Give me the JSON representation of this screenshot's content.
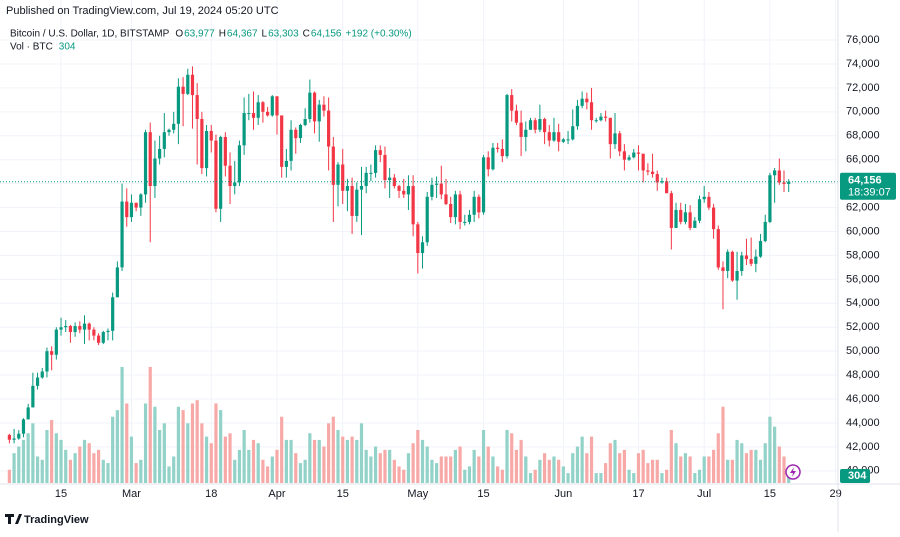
{
  "header": {
    "published": "Published on TradingView.com, Jul 19, 2024 05:20 UTC"
  },
  "footer": {
    "brand": "TradingView"
  },
  "chart_data": {
    "type": "candlestick",
    "symbol": "Bitcoin / U.S. Dollar, 1D, BITSTAMP",
    "legend": [
      {
        "key": "O",
        "value": "63,977"
      },
      {
        "key": "H",
        "value": "64,367"
      },
      {
        "key": "L",
        "value": "63,303"
      },
      {
        "key": "C",
        "value": "64,156"
      }
    ],
    "change": "+192 (+0.30%)",
    "volume_title": "Vol · BTC",
    "last_price_label": "64,156",
    "countdown": "18:39:07",
    "up_color": "#089981",
    "down_color": "#f23645",
    "up_volume_color": "#92d2c8",
    "down_volume_color": "#f7a9a7",
    "grid": true,
    "ylim": [
      38900,
      77340
    ],
    "yticks": [
      {
        "value": 40000,
        "label": "40,000"
      },
      {
        "value": 42000,
        "label": "42,000"
      },
      {
        "value": 44000,
        "label": "44,000"
      },
      {
        "value": 46000,
        "label": "46,000"
      },
      {
        "value": 48000,
        "label": "48,000"
      },
      {
        "value": 50000,
        "label": "50,000"
      },
      {
        "value": 52000,
        "label": "52,000"
      },
      {
        "value": 54000,
        "label": "54,000"
      },
      {
        "value": 56000,
        "label": "56,000"
      },
      {
        "value": 58000,
        "label": "58,000"
      },
      {
        "value": 60000,
        "label": "60,000"
      },
      {
        "value": 62000,
        "label": "62,000"
      },
      {
        "value": 64000,
        "label": "64,000"
      },
      {
        "value": 66000,
        "label": "66,000"
      },
      {
        "value": 68000,
        "label": "68,000"
      },
      {
        "value": 70000,
        "label": "70,000"
      },
      {
        "value": 72000,
        "label": "72,000"
      },
      {
        "value": 74000,
        "label": "74,000"
      },
      {
        "value": 76000,
        "label": "76,000"
      }
    ],
    "xlim": [
      -2,
      176.5
    ],
    "xticks": [
      {
        "value": 11,
        "label": "15"
      },
      {
        "value": 26,
        "label": "Mar"
      },
      {
        "value": 43,
        "label": "18"
      },
      {
        "value": 57,
        "label": "Apr"
      },
      {
        "value": 71,
        "label": "15"
      },
      {
        "value": 87,
        "label": "May"
      },
      {
        "value": 101,
        "label": "15"
      },
      {
        "value": 118,
        "label": "Jun"
      },
      {
        "value": 134,
        "label": "17"
      },
      {
        "value": 148,
        "label": "Jul"
      },
      {
        "value": 162,
        "label": "15"
      },
      {
        "value": 176,
        "label": "29"
      }
    ],
    "candles": [
      [
        43000,
        43100,
        42300,
        42600
      ],
      [
        42600,
        43500,
        42300,
        42700
      ],
      [
        42700,
        43400,
        42600,
        43100
      ],
      [
        43100,
        44400,
        42800,
        44300
      ],
      [
        44300,
        45600,
        44300,
        45300
      ],
      [
        45300,
        48200,
        45300,
        47100
      ],
      [
        47100,
        48200,
        46800,
        47800
      ],
      [
        47800,
        48600,
        47700,
        48300
      ],
      [
        48300,
        50300,
        47800,
        50000
      ],
      [
        50000,
        50400,
        48400,
        49700
      ],
      [
        49700,
        52000,
        49300,
        51800
      ],
      [
        51800,
        52800,
        51300,
        52000
      ],
      [
        52000,
        52600,
        51600,
        52100
      ],
      [
        52100,
        52200,
        50700,
        51600
      ],
      [
        51600,
        52400,
        51200,
        52100
      ],
      [
        52100,
        52500,
        51500,
        51800
      ],
      [
        51800,
        53000,
        50600,
        52300
      ],
      [
        52300,
        52400,
        50900,
        51800
      ],
      [
        51800,
        52000,
        50900,
        51300
      ],
      [
        51300,
        51500,
        50500,
        50700
      ],
      [
        50700,
        51700,
        50600,
        51600
      ],
      [
        51600,
        51900,
        50900,
        51700
      ],
      [
        51700,
        54900,
        50900,
        54500
      ],
      [
        54500,
        57500,
        54500,
        57000
      ],
      [
        57000,
        64000,
        56700,
        62500
      ],
      [
        62500,
        63600,
        60400,
        61200
      ],
      [
        61200,
        63100,
        60800,
        62400
      ],
      [
        62400,
        62400,
        61700,
        62000
      ],
      [
        62000,
        63200,
        61300,
        63100
      ],
      [
        63100,
        68500,
        62400,
        68300
      ],
      [
        68300,
        69100,
        59100,
        63800
      ],
      [
        63800,
        67600,
        62800,
        66100
      ],
      [
        66100,
        68000,
        65600,
        66900
      ],
      [
        66900,
        69900,
        66200,
        68300
      ],
      [
        68300,
        68600,
        68000,
        68500
      ],
      [
        68500,
        70000,
        68200,
        69000
      ],
      [
        69000,
        72800,
        67300,
        72100
      ],
      [
        72100,
        72900,
        68800,
        71500
      ],
      [
        71500,
        73600,
        71400,
        73100
      ],
      [
        73100,
        73800,
        68600,
        71400
      ],
      [
        71400,
        72400,
        65600,
        69400
      ],
      [
        69400,
        70000,
        64800,
        65300
      ],
      [
        65300,
        68900,
        64600,
        68400
      ],
      [
        68400,
        68900,
        66600,
        67600
      ],
      [
        67600,
        68100,
        61600,
        61900
      ],
      [
        61900,
        68000,
        60800,
        67900
      ],
      [
        67900,
        68300,
        64600,
        65500
      ],
      [
        65500,
        66600,
        62300,
        63800
      ],
      [
        63800,
        65900,
        63100,
        64100
      ],
      [
        64100,
        67600,
        63800,
        67200
      ],
      [
        67200,
        71200,
        66400,
        69900
      ],
      [
        69900,
        71500,
        69300,
        69900
      ],
      [
        69900,
        71700,
        68500,
        69500
      ],
      [
        69500,
        71400,
        68900,
        70800
      ],
      [
        70800,
        70900,
        69100,
        70000
      ],
      [
        70000,
        70400,
        69600,
        69700
      ],
      [
        69700,
        71400,
        69600,
        71300
      ],
      [
        71300,
        71300,
        68100,
        69700
      ],
      [
        69700,
        69700,
        64500,
        65400
      ],
      [
        65400,
        66900,
        64500,
        65900
      ],
      [
        65900,
        69300,
        65100,
        68500
      ],
      [
        68500,
        68700,
        66500,
        67800
      ],
      [
        67800,
        69000,
        67400,
        68900
      ],
      [
        68900,
        70300,
        68800,
        69400
      ],
      [
        69400,
        72700,
        69100,
        71600
      ],
      [
        71600,
        71700,
        68200,
        69200
      ],
      [
        69200,
        71000,
        67500,
        70600
      ],
      [
        70600,
        71300,
        69600,
        70100
      ],
      [
        70100,
        71200,
        65100,
        67100
      ],
      [
        67100,
        67900,
        60800,
        63900
      ],
      [
        63900,
        65800,
        62100,
        65600
      ],
      [
        65600,
        66900,
        62300,
        63400
      ],
      [
        63400,
        64400,
        61700,
        63800
      ],
      [
        63800,
        64500,
        59800,
        61300
      ],
      [
        61300,
        64100,
        60800,
        63500
      ],
      [
        63500,
        65400,
        59700,
        63800
      ],
      [
        63800,
        65400,
        63200,
        64900
      ],
      [
        64900,
        65600,
        64200,
        64900
      ],
      [
        64900,
        67200,
        64500,
        66800
      ],
      [
        66800,
        67200,
        65800,
        66400
      ],
      [
        66400,
        67100,
        63600,
        64300
      ],
      [
        64300,
        65300,
        62800,
        64500
      ],
      [
        64500,
        64800,
        63600,
        63800
      ],
      [
        63800,
        63900,
        62800,
        63400
      ],
      [
        63400,
        64400,
        62800,
        63100
      ],
      [
        63100,
        64700,
        61800,
        63800
      ],
      [
        63800,
        64700,
        59600,
        60600
      ],
      [
        60600,
        60800,
        56500,
        58200
      ],
      [
        58200,
        59600,
        56900,
        59100
      ],
      [
        59100,
        63300,
        58800,
        62900
      ],
      [
        62900,
        64500,
        62600,
        63900
      ],
      [
        63900,
        64600,
        62800,
        64000
      ],
      [
        64000,
        65500,
        62700,
        63100
      ],
      [
        63100,
        64400,
        62200,
        62300
      ],
      [
        62300,
        62900,
        60700,
        61200
      ],
      [
        61200,
        63400,
        60600,
        63100
      ],
      [
        63100,
        63400,
        60200,
        60800
      ],
      [
        60800,
        61400,
        60500,
        60800
      ],
      [
        60800,
        61800,
        60600,
        61400
      ],
      [
        61400,
        63400,
        60800,
        62900
      ],
      [
        62900,
        63100,
        61100,
        61600
      ],
      [
        61600,
        66400,
        61400,
        66200
      ],
      [
        66200,
        66700,
        64600,
        65200
      ],
      [
        65200,
        67400,
        65100,
        67000
      ],
      [
        67000,
        67400,
        66600,
        66900
      ],
      [
        66900,
        67700,
        65800,
        66300
      ],
      [
        66300,
        71500,
        66100,
        71400
      ],
      [
        71400,
        71900,
        69200,
        70100
      ],
      [
        70100,
        70600,
        68900,
        69100
      ],
      [
        69100,
        70100,
        66300,
        67900
      ],
      [
        67900,
        69200,
        66700,
        68500
      ],
      [
        68500,
        69500,
        68500,
        69300
      ],
      [
        69300,
        69500,
        68200,
        68500
      ],
      [
        68500,
        70600,
        68300,
        69400
      ],
      [
        69400,
        69500,
        67300,
        68300
      ],
      [
        68300,
        68900,
        67100,
        67600
      ],
      [
        67600,
        69500,
        67500,
        68300
      ],
      [
        68300,
        69000,
        66700,
        67500
      ],
      [
        67500,
        67800,
        67400,
        67700
      ],
      [
        67700,
        68400,
        67300,
        67700
      ],
      [
        67700,
        70200,
        67600,
        68800
      ],
      [
        68800,
        71000,
        68500,
        70500
      ],
      [
        70500,
        71700,
        70300,
        71100
      ],
      [
        71100,
        71600,
        70200,
        70800
      ],
      [
        70800,
        72000,
        68500,
        69300
      ],
      [
        69300,
        69500,
        69100,
        69300
      ],
      [
        69300,
        69900,
        69200,
        69600
      ],
      [
        69600,
        70100,
        69200,
        69500
      ],
      [
        69500,
        69500,
        66100,
        67300
      ],
      [
        67300,
        69900,
        66900,
        68200
      ],
      [
        68200,
        68400,
        66300,
        66700
      ],
      [
        66700,
        67300,
        65100,
        66000
      ],
      [
        66000,
        66400,
        65900,
        66200
      ],
      [
        66200,
        66900,
        66100,
        66600
      ],
      [
        66600,
        67200,
        65100,
        66500
      ],
      [
        66500,
        66500,
        64100,
        65100
      ],
      [
        65100,
        65700,
        64700,
        65000
      ],
      [
        65000,
        66500,
        64500,
        64800
      ],
      [
        64800,
        65100,
        63400,
        64100
      ],
      [
        64100,
        64500,
        64000,
        64200
      ],
      [
        64200,
        64500,
        63200,
        63200
      ],
      [
        63200,
        63400,
        58500,
        60300
      ],
      [
        60300,
        62400,
        60300,
        61800
      ],
      [
        61800,
        62400,
        60600,
        60800
      ],
      [
        60800,
        62300,
        60600,
        61600
      ],
      [
        61600,
        62200,
        60100,
        60300
      ],
      [
        60300,
        61200,
        60300,
        60900
      ],
      [
        60900,
        63000,
        60700,
        62700
      ],
      [
        62700,
        63800,
        62400,
        62900
      ],
      [
        62900,
        63300,
        61800,
        62000
      ],
      [
        62000,
        62300,
        59400,
        60200
      ],
      [
        60200,
        60500,
        56800,
        57000
      ],
      [
        57000,
        57500,
        53500,
        56700
      ],
      [
        56700,
        58500,
        56100,
        58300
      ],
      [
        58300,
        58400,
        55800,
        55900
      ],
      [
        55900,
        58300,
        54300,
        56700
      ],
      [
        56700,
        58300,
        56300,
        58000
      ],
      [
        58000,
        59400,
        57200,
        57700
      ],
      [
        57700,
        59500,
        57100,
        57300
      ],
      [
        57300,
        58500,
        56600,
        57900
      ],
      [
        57900,
        59800,
        57800,
        59200
      ],
      [
        59200,
        61400,
        59100,
        60800
      ],
      [
        60800,
        64900,
        60700,
        64700
      ],
      [
        64700,
        65300,
        62400,
        65100
      ],
      [
        65100,
        66100,
        63900,
        64100
      ],
      [
        64100,
        65100,
        63300,
        63977
      ],
      [
        63977,
        64367,
        63303,
        64156
      ]
    ],
    "volumes": [
      400,
      900,
      1100,
      1300,
      1500,
      1800,
      800,
      700,
      1600,
      1900,
      1500,
      1300,
      1000,
      700,
      900,
      1100,
      1300,
      1200,
      900,
      1000,
      700,
      600,
      2000,
      2200,
      3500,
      2400,
      1400,
      600,
      700,
      2400,
      3500,
      2300,
      1600,
      1800,
      500,
      800,
      2300,
      2200,
      1800,
      2400,
      2500,
      1800,
      1400,
      1200,
      2400,
      2200,
      1400,
      1500,
      700,
      1000,
      1600,
      1000,
      1300,
      1200,
      700,
      500,
      800,
      1000,
      2000,
      1300,
      1300,
      900,
      600,
      700,
      1500,
      1300,
      1300,
      1100,
      1800,
      2000,
      1600,
      1400,
      1300,
      1400,
      1300,
      1800,
      1000,
      800,
      1100,
      900,
      1000,
      1000,
      700,
      500,
      400,
      900,
      1200,
      1600,
      1300,
      1100,
      700,
      600,
      800,
      800,
      800,
      1000,
      1100,
      400,
      500,
      1000,
      800,
      1600,
      1100,
      800,
      500,
      400,
      1600,
      1500,
      1000,
      1300,
      800,
      300,
      400,
      700,
      900,
      700,
      800,
      700,
      500,
      300,
      900,
      1100,
      1400,
      900,
      1400,
      300,
      300,
      600,
      1200,
      1300,
      900,
      1000,
      400,
      300,
      900,
      1000,
      600,
      700,
      700,
      300,
      400,
      1600,
      1200,
      800,
      900,
      800,
      300,
      400,
      800,
      800,
      1000,
      1500,
      2300,
      700,
      700,
      1300,
      1200,
      900,
      1000,
      1000,
      700,
      1200,
      2000,
      1700,
      1100,
      800,
      304
    ]
  }
}
